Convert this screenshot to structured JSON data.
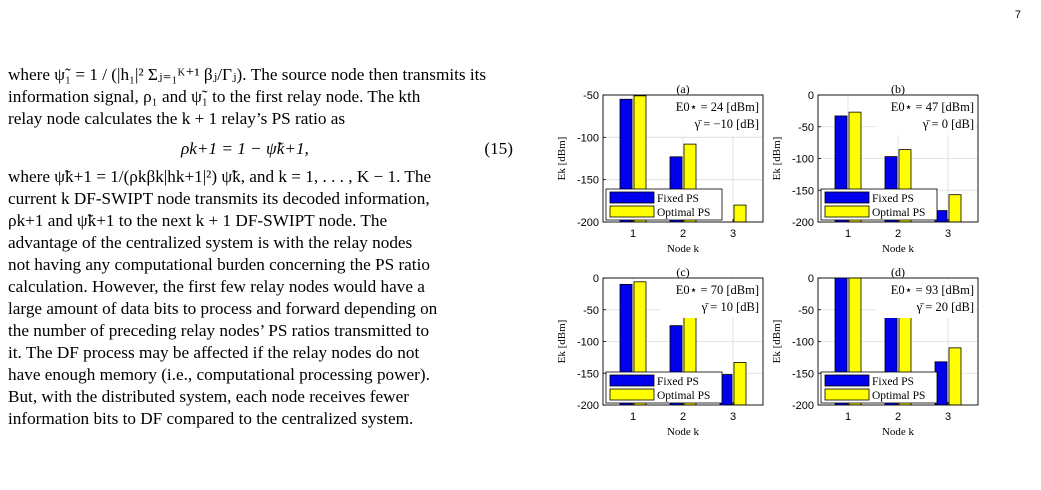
{
  "page_number": "7",
  "text": {
    "line1": "where ψ̃₁ = 1 / (|h₁|² Σⱼ₌₁ᴷ⁺¹ βⱼ/Γⱼ). The source node then transmits its",
    "line2": "information signal, ρ₁ and ψ̃₁ to the first relay node. The kth",
    "line3": "relay node calculates the k + 1 relay’s PS ratio as",
    "equation": "ρk+1 = 1 − ψ̃k+1,",
    "equation_number": "(15)",
    "line4": "where ψ̃k+1 = 1/(ρkβk|hk+1|²) ψ̃k, and k = 1, . . . , K − 1. The",
    "line5": "current k DF-SWIPT node transmits its decoded information,",
    "line6": "ρk+1 and ψ̃k+1 to the next k + 1 DF-SWIPT node. The",
    "line7": "advantage of the centralized system is with the relay nodes",
    "line8": "not having any computational burden concerning the PS ratio",
    "line9": "calculation. However, the first few relay nodes would have a",
    "line10": "large amount of data bits to process and forward depending on",
    "line11": "the number of preceding relay nodes’ PS ratios transmitted to",
    "line12": "it. The DF process may be affected if the relay nodes do not",
    "line13": "have enough memory (i.e., computational processing power).",
    "line14": "But, with the distributed system, each node receives fewer",
    "line15": "information bits to DF compared to the centralized system."
  },
  "colors": {
    "fixed": "#0000ee",
    "optimal": "#ffff00",
    "grid": "#dcdcdc"
  },
  "chart_data": [
    {
      "type": "bar",
      "panel": "(a)",
      "annotation_lines": [
        "E0⋆ = 24 [dBm]",
        "γ̄ = −10 [dB]"
      ],
      "categories": [
        "1",
        "2",
        "3"
      ],
      "xlabel": "Node k",
      "ylabel": "Ek [dBm]",
      "ylim": [
        -200,
        -50
      ],
      "yticks": [
        -50,
        -100,
        -150,
        -200
      ],
      "series": [
        {
          "name": "Fixed PS",
          "values": [
            -55,
            -123,
            null
          ]
        },
        {
          "name": "Optimal PS",
          "values": [
            -51,
            -108,
            -180
          ]
        }
      ],
      "legend": "bottom-left",
      "grid": true
    },
    {
      "type": "bar",
      "panel": "(b)",
      "annotation_lines": [
        "E0⋆ = 47 [dBm]",
        "γ̄ = 0 [dB]"
      ],
      "categories": [
        "1",
        "2",
        "3"
      ],
      "xlabel": "Node k",
      "ylabel": "Ek [dBm]",
      "ylim": [
        -200,
        0
      ],
      "yticks": [
        0,
        -50,
        -100,
        -150,
        -200
      ],
      "series": [
        {
          "name": "Fixed PS",
          "values": [
            -33,
            -97,
            -182
          ]
        },
        {
          "name": "Optimal PS",
          "values": [
            -27,
            -86,
            -157
          ]
        }
      ],
      "legend": "bottom-left",
      "grid": true
    },
    {
      "type": "bar",
      "panel": "(c)",
      "annotation_lines": [
        "E0⋆ = 70 [dBm]",
        "γ̄ = 10 [dB]"
      ],
      "categories": [
        "1",
        "2",
        "3"
      ],
      "xlabel": "Node k",
      "ylabel": "Ek [dBm]",
      "ylim": [
        -200,
        0
      ],
      "yticks": [
        0,
        -50,
        -100,
        -150,
        -200
      ],
      "series": [
        {
          "name": "Fixed PS",
          "values": [
            -10,
            -75,
            -152
          ]
        },
        {
          "name": "Optimal PS",
          "values": [
            -6,
            -62,
            -133
          ]
        }
      ],
      "legend": "bottom-left",
      "grid": true
    },
    {
      "type": "bar",
      "panel": "(d)",
      "annotation_lines": [
        "E0⋆ = 93 [dBm]",
        "γ̄ = 20 [dB]"
      ],
      "categories": [
        "1",
        "2",
        "3"
      ],
      "xlabel": "Node k",
      "ylabel": "Ek [dBm]",
      "ylim": [
        -200,
        0
      ],
      "yticks": [
        0,
        -50,
        -100,
        -150,
        -200
      ],
      "series": [
        {
          "name": "Fixed PS",
          "values": [
            10,
            -53,
            -132
          ]
        },
        {
          "name": "Optimal PS",
          "values": [
            12,
            -40,
            -110
          ]
        }
      ],
      "legend": "bottom-left",
      "grid": true
    }
  ]
}
